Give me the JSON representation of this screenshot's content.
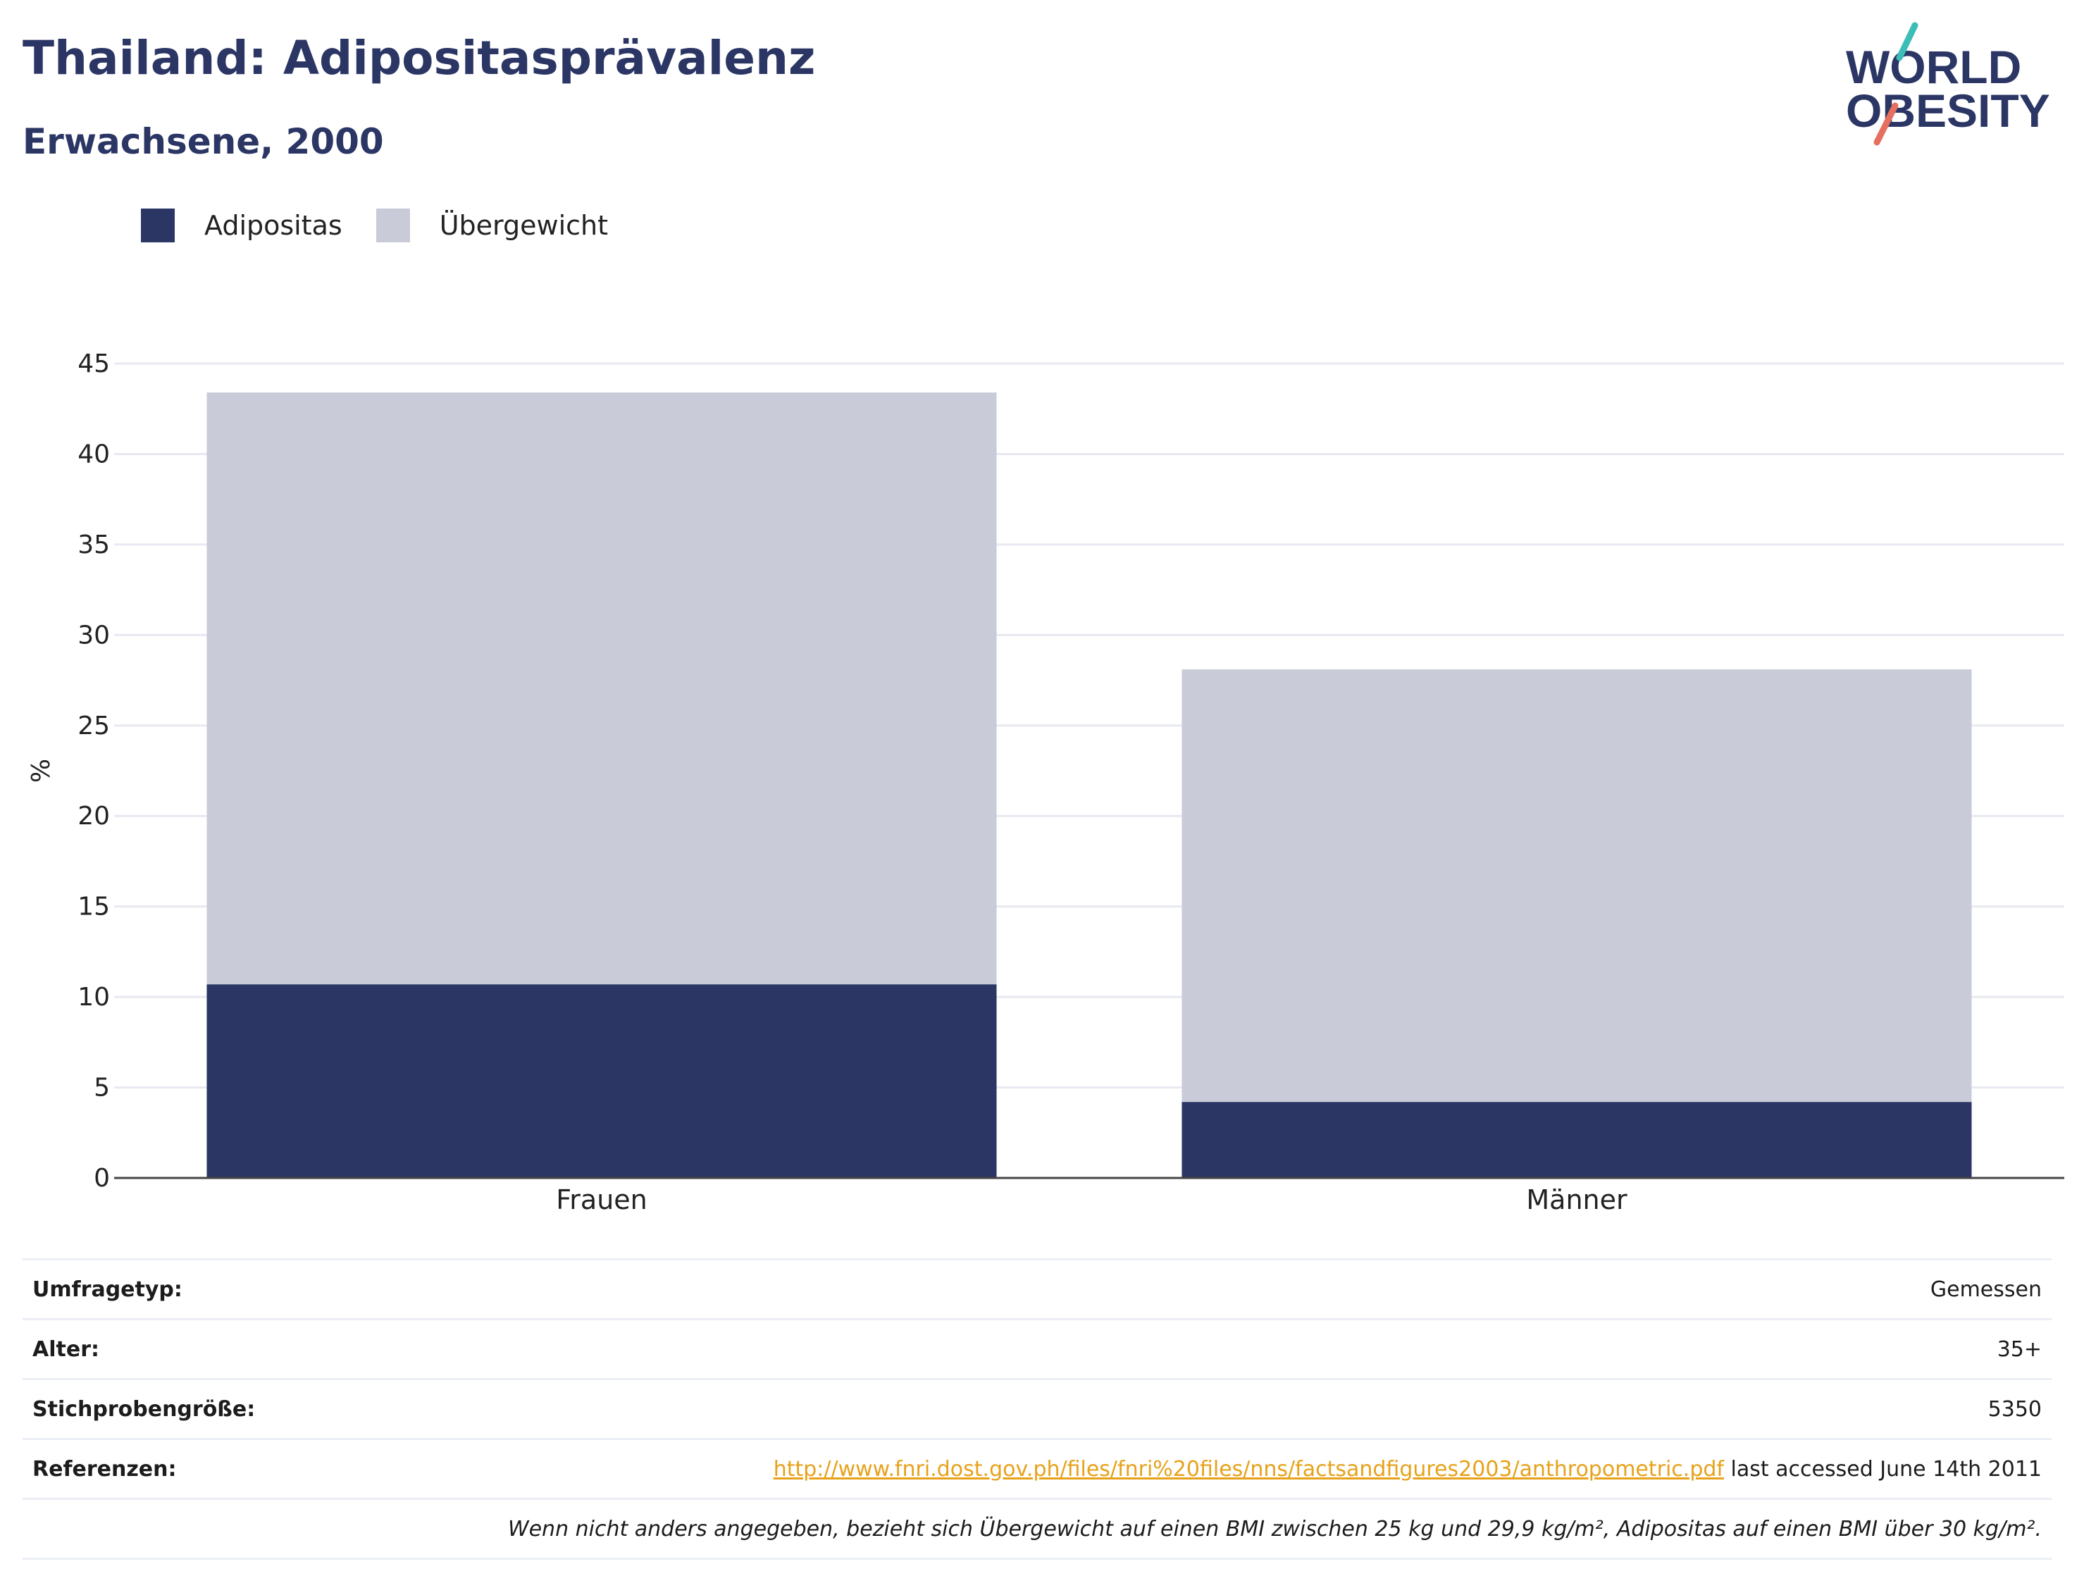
{
  "header": {
    "title": "Thailand: Adipositasprävalenz",
    "subtitle": "Erwachsene, 2000"
  },
  "logo": {
    "line1": "WORLD",
    "line2": "OBESITY",
    "accent_top": "#3cbdb8",
    "accent_bottom": "#e5705f",
    "text_color": "#2b3665"
  },
  "legend": [
    {
      "label": "Adipositas",
      "color": "#2b3665"
    },
    {
      "label": "Übergewicht",
      "color": "#c9ccd8"
    }
  ],
  "chart_data": {
    "type": "bar",
    "stacked": true,
    "categories": [
      "Frauen",
      "Männer"
    ],
    "series": [
      {
        "name": "Adipositas",
        "color": "#2b3665",
        "values": [
          10.7,
          4.2
        ]
      },
      {
        "name": "Übergewicht",
        "color": "#c9ccd8",
        "values": [
          32.7,
          23.9
        ]
      }
    ],
    "ylabel": "%",
    "ylim": [
      0,
      45
    ],
    "yticks": [
      0,
      5,
      10,
      15,
      20,
      25,
      30,
      35,
      40,
      45
    ],
    "grid": true,
    "legend_position": "top-left"
  },
  "info": {
    "survey_type": {
      "label": "Umfragetyp:",
      "value": "Gemessen"
    },
    "age": {
      "label": "Alter:",
      "value": "35+"
    },
    "sample_size": {
      "label": "Stichprobengröße:",
      "value": "5350"
    },
    "references": {
      "label": "Referenzen:",
      "link": "http://www.fnri.dost.gov.ph/files/fnri%20files/nns/factsandfigures2003/anthropometric.pdf",
      "suffix": " last accessed June 14th 2011"
    },
    "footnote": "Wenn nicht anders angegeben, bezieht sich Übergewicht auf einen BMI zwischen 25 kg und 29,9 kg/m², Adipositas auf einen BMI über 30 kg/m²."
  }
}
